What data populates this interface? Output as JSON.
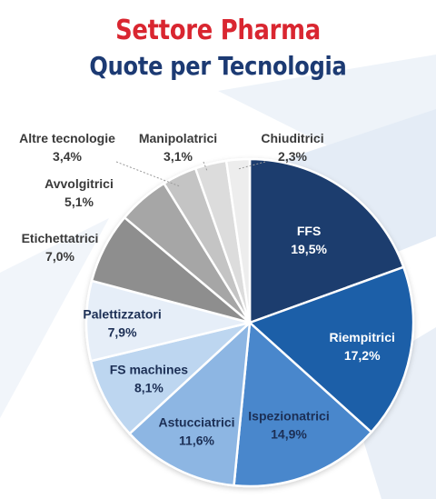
{
  "title": "Settore Pharma",
  "subtitle": "Quote per Tecnologia",
  "colors": {
    "title": "#d92630",
    "subtitle": "#1c3a73"
  },
  "chart_data": {
    "type": "pie",
    "title": "Settore Pharma",
    "subtitle": "Quote per Tecnologia",
    "slices": [
      {
        "label": "FFS",
        "value_label": "19,5%",
        "value": 19.5,
        "color": "#1d3e6e",
        "label_inside": true,
        "text_color": "#ffffff"
      },
      {
        "label": "Riempitrici",
        "value_label": "17,2%",
        "value": 17.2,
        "color": "#1f5ea8",
        "label_inside": true,
        "text_color": "#ffffff"
      },
      {
        "label": "Ispezionatrici",
        "value_label": "14,9%",
        "value": 14.9,
        "color": "#4a87cc",
        "label_inside": true,
        "text_color": "#1c2f55"
      },
      {
        "label": "Astucciatrici",
        "value_label": "11,6%",
        "value": 11.6,
        "color": "#8db6e3",
        "label_inside": true,
        "text_color": "#1c2f55"
      },
      {
        "label": "FS machines",
        "value_label": "8,1%",
        "value": 8.1,
        "color": "#bdd6f0",
        "label_inside": true,
        "text_color": "#1c2f55"
      },
      {
        "label": "Palettizzatori",
        "value_label": "7,9%",
        "value": 7.9,
        "color": "#e6eef8",
        "label_inside": true,
        "text_color": "#1c2f55"
      },
      {
        "label": "Etichettatrici",
        "value_label": "7,0%",
        "value": 7.0,
        "color": "#8e8e8e",
        "label_inside": false,
        "text_color": "#3a3a3a"
      },
      {
        "label": "Avvolgitrici",
        "value_label": "5,1%",
        "value": 5.1,
        "color": "#a6a6a6",
        "label_inside": false,
        "text_color": "#3a3a3a"
      },
      {
        "label": "Altre tecnologie",
        "value_label": "3,4%",
        "value": 3.4,
        "color": "#c4c4c4",
        "label_inside": false,
        "text_color": "#3a3a3a"
      },
      {
        "label": "Manipolatrici",
        "value_label": "3,1%",
        "value": 3.1,
        "color": "#dcdcdc",
        "label_inside": false,
        "text_color": "#3a3a3a"
      },
      {
        "label": "Chiuditrici",
        "value_label": "2,3%",
        "value": 2.3,
        "color": "#ededed",
        "label_inside": false,
        "text_color": "#3a3a3a"
      }
    ],
    "start": "12 o'clock",
    "direction": "clockwise",
    "legend": "none"
  }
}
